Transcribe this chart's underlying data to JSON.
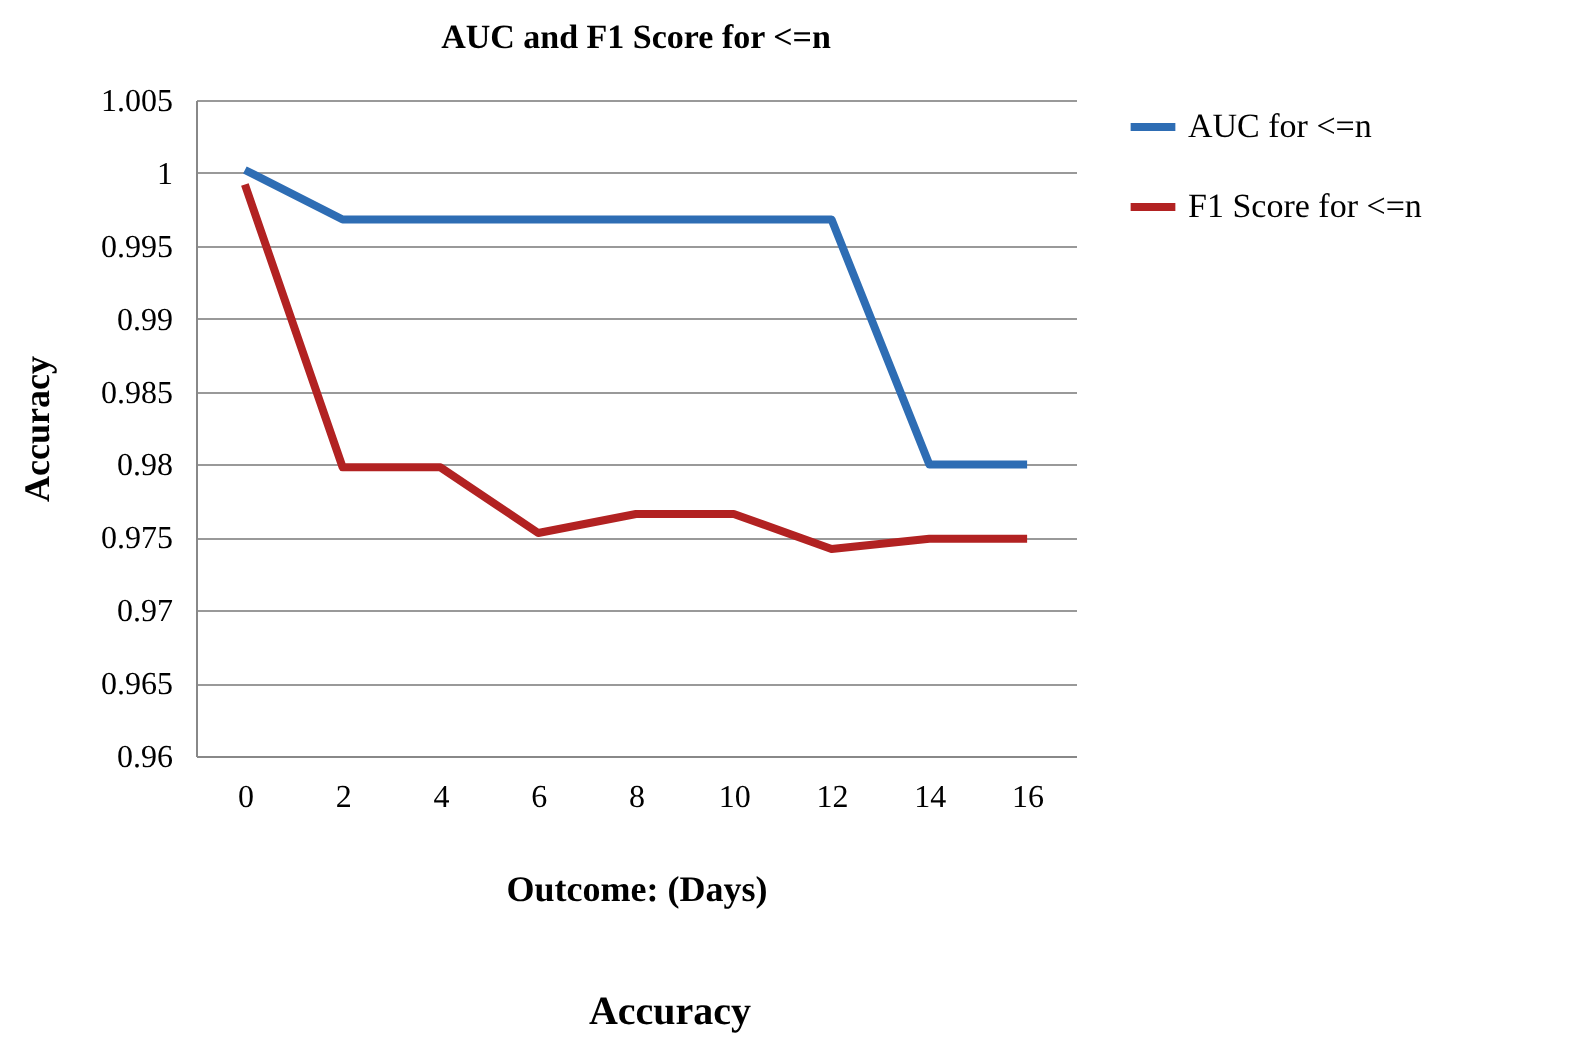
{
  "chart_data": {
    "type": "line",
    "title": "AUC and F1 Score for <=n",
    "xlabel": "Outcome: (Days)",
    "ylabel": "Accuracy",
    "annotations": [
      "Accuracy"
    ],
    "categories": [
      "0",
      "2",
      "4",
      "6",
      "8",
      "10",
      "12",
      "14",
      "16"
    ],
    "series": [
      {
        "name": "AUC for <=n",
        "color": "#2e6db4",
        "values": [
          1.0002,
          0.9968,
          0.9968,
          0.9968,
          0.9968,
          0.9968,
          0.9968,
          0.98,
          0.98
        ]
      },
      {
        "name": "F1 Score for <=n",
        "color": "#b22222",
        "values": [
          0.9992,
          0.9798,
          0.9798,
          0.9753,
          0.9766,
          0.9766,
          0.9742,
          0.9749,
          0.9749
        ]
      }
    ],
    "ylim": [
      0.96,
      1.005
    ],
    "yticks": [
      0.96,
      0.965,
      0.97,
      0.975,
      0.98,
      0.985,
      0.99,
      0.995,
      1,
      1.005
    ],
    "grid": "y",
    "legend": "right",
    "marker": "none",
    "line_style": "solid"
  }
}
